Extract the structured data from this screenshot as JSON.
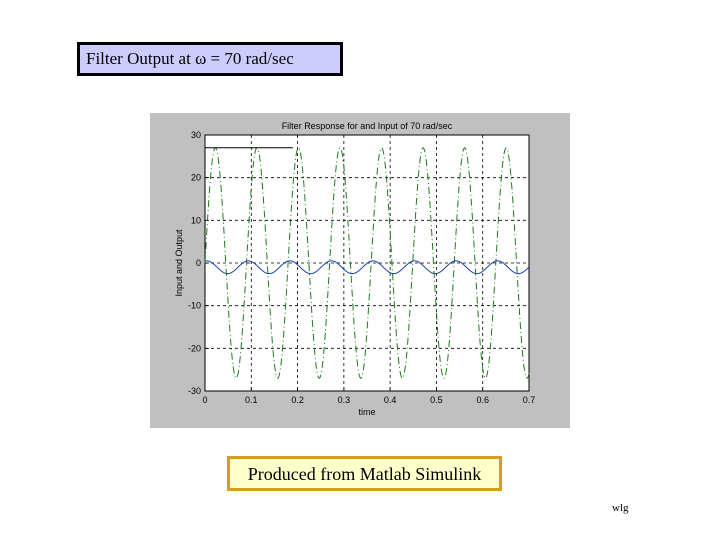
{
  "slide": {
    "title": "Filter Output at ω =  70 rad/sec",
    "caption": "Produced from Matlab Simulink",
    "initials": "wlg"
  },
  "chart_data": {
    "type": "line",
    "title": "Filter Response for and Input of 70 rad/sec",
    "xlabel": "time",
    "ylabel": "Input and Output",
    "xlim": [
      0,
      0.7
    ],
    "ylim": [
      -30,
      30
    ],
    "xticks": [
      0,
      0.1,
      0.2,
      0.3,
      0.4,
      0.5,
      0.6,
      0.7
    ],
    "xtick_labels": [
      "0",
      "0.1",
      "0.2",
      "0.3",
      "0.4",
      "0.5",
      "0.6",
      "0.7"
    ],
    "yticks": [
      30,
      20,
      10,
      0,
      -10,
      -20,
      -30
    ],
    "ytick_labels": [
      "30",
      "20",
      "10",
      "0",
      "-10",
      "-20",
      "-30"
    ],
    "grid": true,
    "series": [
      {
        "style": "dash-dot",
        "color": "#1f7a1f",
        "amplitude": 27,
        "omega": 70,
        "offset": 0,
        "phase": 0
      },
      {
        "style": "solid",
        "color": "#1a3fb0",
        "amplitude": 1.5,
        "omega": 70,
        "offset": -1,
        "phase": 1.3
      }
    ],
    "reference_segment": {
      "color": "#000000",
      "x": [
        0,
        0.19
      ],
      "y": [
        27,
        27
      ]
    }
  }
}
